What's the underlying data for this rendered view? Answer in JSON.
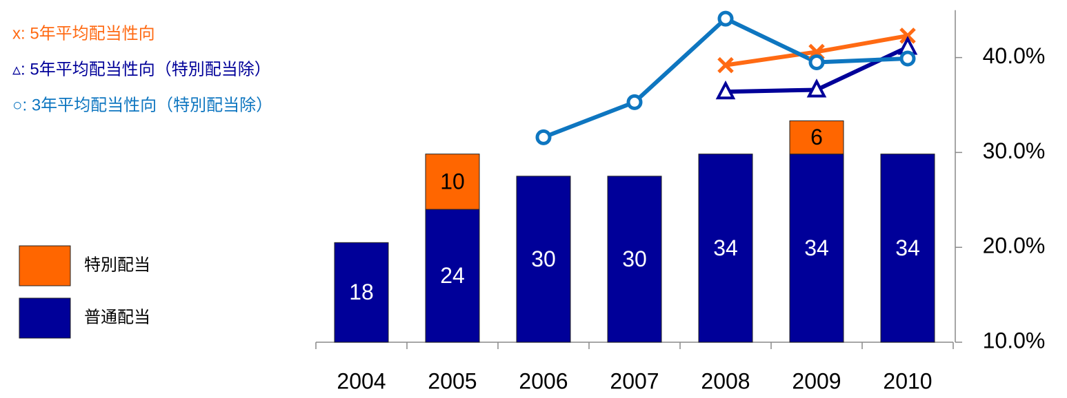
{
  "chart_data": {
    "type": "bar",
    "stacked": true,
    "categories": [
      "2004",
      "2005",
      "2006",
      "2007",
      "2008",
      "2009",
      "2010"
    ],
    "ylim": [
      0,
      60
    ],
    "y2lim": [
      10,
      45
    ],
    "y2ticks": [
      {
        "value": 10,
        "label": "10.0%"
      },
      {
        "value": 20,
        "label": "20.0%"
      },
      {
        "value": 30,
        "label": "30.0%"
      },
      {
        "value": 40,
        "label": "40.0%"
      }
    ],
    "series": [
      {
        "name": "普通配当",
        "color": "#000099",
        "values": [
          18,
          24,
          30,
          30,
          34,
          34,
          34
        ]
      },
      {
        "name": "特別配当",
        "color": "#ff6600",
        "values": [
          null,
          10,
          null,
          null,
          null,
          6,
          null
        ]
      }
    ],
    "lines": [
      {
        "name": "x: 5年平均配当性向",
        "color": "#ff6a13",
        "marker": "x",
        "axis": "y2",
        "values": [
          null,
          null,
          null,
          null,
          39.2,
          40.6,
          42.3
        ]
      },
      {
        "name": "▵: 5年平均配当性向（特別配当除）",
        "color": "#000099",
        "marker": "triangle",
        "axis": "y2",
        "values": [
          null,
          null,
          null,
          null,
          36.4,
          36.6,
          41.1
        ]
      },
      {
        "name": "○: 3年平均配当性向（特別配当除）",
        "color": "#0e76c0",
        "marker": "circle",
        "axis": "y2",
        "values": [
          null,
          null,
          31.6,
          35.3,
          44.1,
          39.5,
          39.9
        ]
      }
    ]
  }
}
